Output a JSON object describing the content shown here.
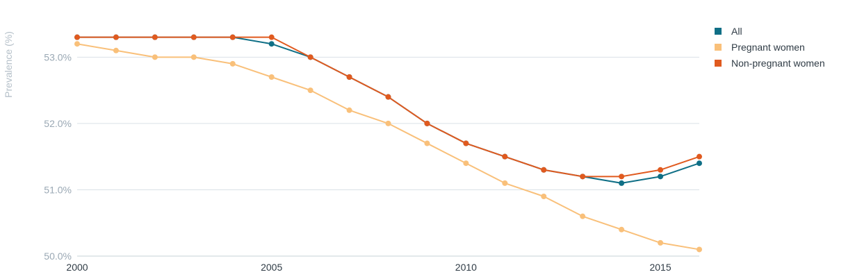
{
  "chart_data": {
    "type": "line",
    "title": "",
    "xlabel": "",
    "ylabel": "Prevalence (%)",
    "xlim": [
      2000,
      2016
    ],
    "ylim": [
      50.0,
      53.6
    ],
    "x_ticks": [
      "2000",
      "2005",
      "2010",
      "2015"
    ],
    "y_ticks": [
      "50.0%",
      "51.0%",
      "52.0%",
      "53.0%"
    ],
    "x": [
      2000,
      2001,
      2002,
      2003,
      2004,
      2005,
      2006,
      2007,
      2008,
      2009,
      2010,
      2011,
      2012,
      2013,
      2014,
      2015,
      2016
    ],
    "series": [
      {
        "name": "All",
        "color": "#0f6f86",
        "values": [
          53.3,
          53.3,
          53.3,
          53.3,
          53.3,
          53.2,
          53.0,
          52.7,
          52.4,
          52.0,
          51.7,
          51.5,
          51.3,
          51.2,
          51.1,
          51.2,
          51.4
        ]
      },
      {
        "name": "Pregnant women",
        "color": "#f9c07a",
        "values": [
          53.2,
          53.1,
          53.0,
          53.0,
          52.9,
          52.7,
          52.5,
          52.2,
          52.0,
          51.7,
          51.4,
          51.1,
          50.9,
          50.6,
          50.4,
          50.2,
          50.1
        ]
      },
      {
        "name": "Non-pregnant women",
        "color": "#e05a1f",
        "values": [
          53.3,
          53.3,
          53.3,
          53.3,
          53.3,
          53.3,
          53.0,
          52.7,
          52.4,
          52.0,
          51.7,
          51.5,
          51.3,
          51.2,
          51.2,
          51.3,
          51.5
        ]
      }
    ],
    "grid": true,
    "legend_position": "top-right"
  }
}
